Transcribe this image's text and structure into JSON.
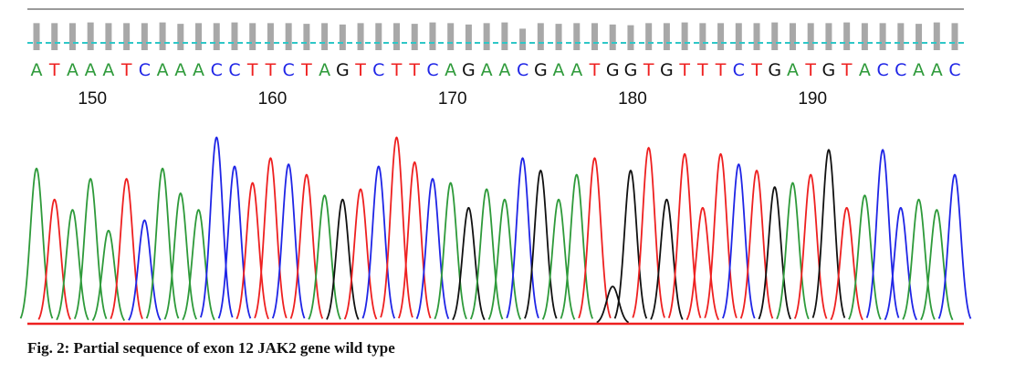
{
  "figure": {
    "caption": "Fig. 2: Partial sequence of exon 12 JAK2 gene wild type"
  },
  "chart_data": {
    "type": "line",
    "title": "",
    "sequence": "ATAAATCAAACCTTCTAGTCTTCAGAACGAATGGTGTTTCTGATGTACCAAC",
    "position_labels": [
      {
        "value": "150",
        "base_index": 3
      },
      {
        "value": "160",
        "base_index": 13
      },
      {
        "value": "170",
        "base_index": 23
      },
      {
        "value": "180",
        "base_index": 33
      },
      {
        "value": "190",
        "base_index": 43
      }
    ],
    "quality_values": [
      0.78,
      0.78,
      0.78,
      0.8,
      0.78,
      0.78,
      0.78,
      0.8,
      0.76,
      0.78,
      0.78,
      0.8,
      0.78,
      0.78,
      0.78,
      0.76,
      0.78,
      0.74,
      0.78,
      0.78,
      0.78,
      0.76,
      0.8,
      0.78,
      0.74,
      0.78,
      0.8,
      0.62,
      0.78,
      0.76,
      0.78,
      0.78,
      0.74,
      0.72,
      0.78,
      0.78,
      0.8,
      0.78,
      0.78,
      0.78,
      0.78,
      0.8,
      0.78,
      0.78,
      0.78,
      0.8,
      0.78,
      0.78,
      0.78,
      0.76,
      0.8,
      0.78
    ],
    "peak_heights": [
      0.75,
      0.6,
      0.55,
      0.7,
      0.45,
      0.7,
      0.5,
      0.75,
      0.63,
      0.55,
      0.9,
      0.76,
      0.68,
      0.8,
      0.77,
      0.72,
      0.62,
      0.6,
      0.65,
      0.76,
      0.9,
      0.78,
      0.7,
      0.68,
      0.56,
      0.65,
      0.6,
      0.8,
      0.74,
      0.6,
      0.72,
      0.8,
      0.18,
      0.74,
      0.85,
      0.6,
      0.82,
      0.56,
      0.82,
      0.77,
      0.74,
      0.66,
      0.68,
      0.72,
      0.84,
      0.56,
      0.62,
      0.84,
      0.56,
      0.6,
      0.55,
      0.72
    ],
    "colors": {
      "A": "#2e9a3a",
      "C": "#1f25e6",
      "G": "#111111",
      "T": "#ee2020",
      "quality_bar": "#a8a8a8",
      "threshold_line": "#2ec7c7"
    }
  }
}
